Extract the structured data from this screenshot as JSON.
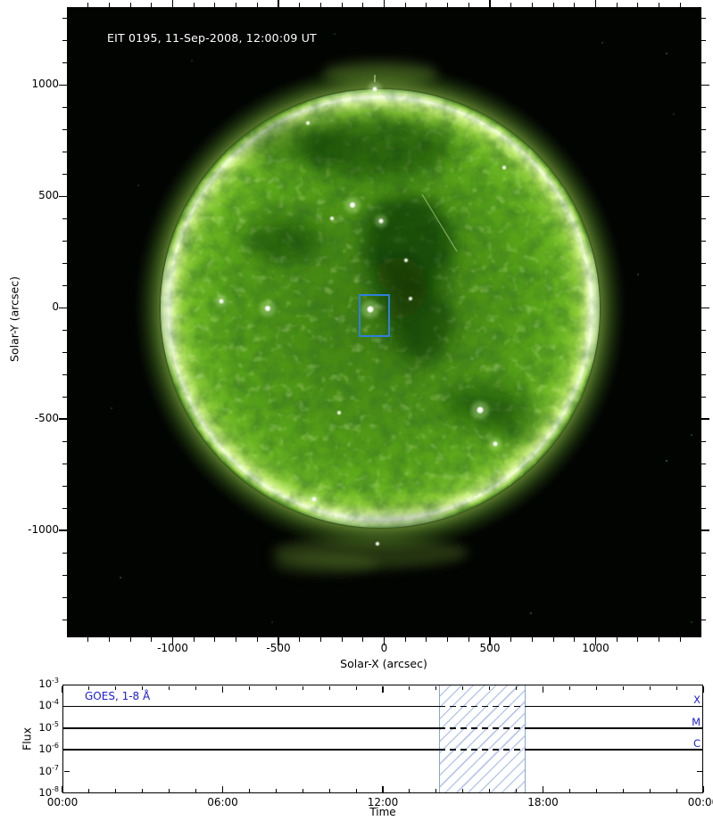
{
  "colors": {
    "goes_blue": "#1c1cd6",
    "fov_blue": "#2e7fdc",
    "hatch_fill": "#b9c9e8",
    "hatch_border": "#8aa5cf",
    "axis_black": "#000000",
    "image_background": "#020402",
    "sun_disk_green": "#55a018",
    "sun_limb": "#f3ffd8"
  },
  "chart_data": [
    {
      "type": "heatmap",
      "title": "EIT 0195, 11-Sep-2008, 12:00:09 UT",
      "xlabel": "Solar-X (arcsec)",
      "ylabel": "Solar-Y (arcsec)",
      "xlim": [
        -1500,
        1500
      ],
      "ylim": [
        -1480,
        1350
      ],
      "xticks": [
        -1000,
        -500,
        0,
        500,
        1000
      ],
      "yticks": [
        -1000,
        -500,
        0,
        500,
        1000
      ],
      "minor_tick_step_arcsec": 100,
      "image_description": "SOHO EIT 195 A full-disk solar image, green colormap: bright white limb ring, mottled green disk, dark coronal hole just right of disk center, scattered bright points",
      "fov_box_arcsec": {
        "x": [
          -118,
          30
        ],
        "y": [
          -132,
          62
        ]
      }
    },
    {
      "type": "line",
      "series_label": "GOES, 1-8 Å",
      "xlabel": "Time",
      "ylabel": "Flux",
      "x_hours_range": [
        0,
        24
      ],
      "xtick_hours": [
        0,
        6,
        12,
        18,
        24
      ],
      "xtick_labels": [
        "00:00",
        "06:00",
        "12:00",
        "18:00",
        "00:00"
      ],
      "ytick_exponents": [
        -3,
        -4,
        -5,
        -6,
        -7,
        -8
      ],
      "flare_class_lines": [
        {
          "label": "X",
          "exponent": -4
        },
        {
          "label": "M",
          "exponent": -5
        },
        {
          "label": "C",
          "exponent": -6
        }
      ],
      "hatched_window_hours": [
        14.1,
        17.35
      ],
      "series": []
    }
  ]
}
